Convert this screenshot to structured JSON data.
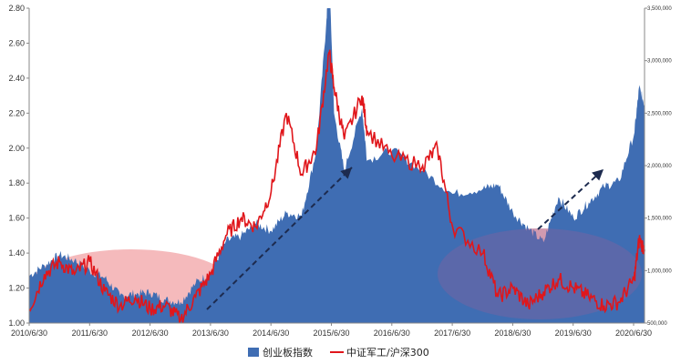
{
  "colors": {
    "area": "#3f6db3",
    "line": "#e0161b",
    "ellipse_pink": "#f4b6b8",
    "ellipse_purple": "#8f5f9c",
    "arrow": "#1d2b4f"
  },
  "legend": {
    "area_label": "创业板指数",
    "line_label": "中证军工/沪深300"
  },
  "chart_data": {
    "type": "area",
    "x_labels": [
      "2010/6/30",
      "2011/6/30",
      "2012/6/30",
      "2013/6/30",
      "2014/6/30",
      "2015/6/30",
      "2016/6/30",
      "2017/6/30",
      "2018/6/30",
      "2019/6/30",
      "2020/6/30"
    ],
    "y_left": {
      "ticks": [
        "1.00",
        "1.20",
        "1.40",
        "1.60",
        "1.80",
        "2.00",
        "2.20",
        "2.40",
        "2.60",
        "2.80"
      ],
      "ylim": [
        1.0,
        2.8
      ]
    },
    "y_right": {
      "ticks": [
        "500,000",
        "1,000,000",
        "1,500,000",
        "2,000,000",
        "2,500,000",
        "3,000,000",
        "3,500,000"
      ],
      "ylim": [
        500000,
        3500000
      ]
    },
    "series": [
      {
        "name": "创业板指数",
        "type": "area",
        "axis": "right",
        "points": [
          [
            "2010/6/30",
            950000
          ],
          [
            "2010/9/30",
            1050000
          ],
          [
            "2010/12/31",
            1150000
          ],
          [
            "2011/3/31",
            1100000
          ],
          [
            "2011/6/30",
            1000000
          ],
          [
            "2011/9/30",
            930000
          ],
          [
            "2011/12/31",
            760000
          ],
          [
            "2012/3/31",
            780000
          ],
          [
            "2012/6/30",
            790000
          ],
          [
            "2012/9/30",
            720000
          ],
          [
            "2012/12/31",
            700000
          ],
          [
            "2013/3/31",
            880000
          ],
          [
            "2013/6/30",
            980000
          ],
          [
            "2013/9/30",
            1280000
          ],
          [
            "2013/12/31",
            1330000
          ],
          [
            "2014/3/31",
            1450000
          ],
          [
            "2014/6/30",
            1380000
          ],
          [
            "2014/9/30",
            1550000
          ],
          [
            "2014/12/31",
            1520000
          ],
          [
            "2015/3/31",
            2150000
          ],
          [
            "2015/5/31",
            3400000
          ],
          [
            "2015/6/15",
            3900000
          ],
          [
            "2015/7/15",
            2500000
          ],
          [
            "2015/9/15",
            1950000
          ],
          [
            "2015/12/31",
            2550000
          ],
          [
            "2016/1/31",
            2050000
          ],
          [
            "2016/6/30",
            2150000
          ],
          [
            "2016/12/31",
            1950000
          ],
          [
            "2017/6/30",
            1730000
          ],
          [
            "2017/12/31",
            1780000
          ],
          [
            "2018/3/31",
            1820000
          ],
          [
            "2018/6/30",
            1550000
          ],
          [
            "2018/9/30",
            1400000
          ],
          [
            "2018/12/31",
            1270000
          ],
          [
            "2019/3/31",
            1700000
          ],
          [
            "2019/6/30",
            1500000
          ],
          [
            "2019/9/30",
            1650000
          ],
          [
            "2019/12/31",
            1800000
          ],
          [
            "2020/3/31",
            1850000
          ],
          [
            "2020/6/30",
            2300000
          ],
          [
            "2020/7/31",
            2750000
          ],
          [
            "2020/9/1",
            2580000
          ]
        ]
      },
      {
        "name": "中证军工/沪深300",
        "type": "line",
        "axis": "left",
        "points": [
          [
            "2010/6/30",
            1.08
          ],
          [
            "2010/9/30",
            1.28
          ],
          [
            "2010/12/31",
            1.35
          ],
          [
            "2011/3/31",
            1.28
          ],
          [
            "2011/6/30",
            1.35
          ],
          [
            "2011/9/30",
            1.18
          ],
          [
            "2011/12/31",
            1.1
          ],
          [
            "2012/3/31",
            1.15
          ],
          [
            "2012/6/30",
            1.08
          ],
          [
            "2012/9/30",
            1.1
          ],
          [
            "2012/12/31",
            1.02
          ],
          [
            "2013/3/31",
            1.15
          ],
          [
            "2013/6/30",
            1.28
          ],
          [
            "2013/9/30",
            1.5
          ],
          [
            "2013/12/31",
            1.6
          ],
          [
            "2014/3/31",
            1.55
          ],
          [
            "2014/6/30",
            1.75
          ],
          [
            "2014/9/30",
            2.2
          ],
          [
            "2014/12/31",
            1.85
          ],
          [
            "2015/3/31",
            2.0
          ],
          [
            "2015/6/15",
            2.55
          ],
          [
            "2015/7/15",
            2.35
          ],
          [
            "2015/9/15",
            2.05
          ],
          [
            "2015/12/31",
            2.3
          ],
          [
            "2016/1/31",
            2.1
          ],
          [
            "2016/6/30",
            1.95
          ],
          [
            "2016/12/31",
            1.9
          ],
          [
            "2017/3/31",
            2.0
          ],
          [
            "2017/6/30",
            1.55
          ],
          [
            "2017/12/31",
            1.4
          ],
          [
            "2018/3/31",
            1.15
          ],
          [
            "2018/6/30",
            1.2
          ],
          [
            "2018/9/30",
            1.1
          ],
          [
            "2018/12/31",
            1.18
          ],
          [
            "2019/3/31",
            1.25
          ],
          [
            "2019/6/30",
            1.2
          ],
          [
            "2019/9/30",
            1.15
          ],
          [
            "2019/12/31",
            1.1
          ],
          [
            "2020/3/31",
            1.12
          ],
          [
            "2020/6/30",
            1.25
          ],
          [
            "2020/7/31",
            1.48
          ],
          [
            "2020/9/1",
            1.42
          ]
        ]
      }
    ],
    "legend_position": "bottom"
  }
}
